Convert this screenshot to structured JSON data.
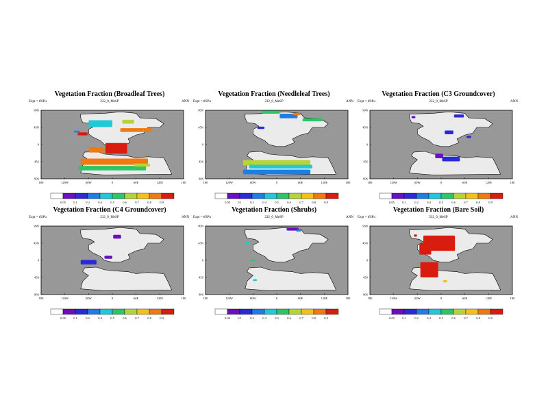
{
  "colors": {
    "ocean": "#989898",
    "land": "#ebebeb",
    "coast": "#000000",
    "colorbar": [
      "#6a10c0",
      "#2a2ad6",
      "#1e7ee6",
      "#20c8d8",
      "#2ec46a",
      "#b6d43a",
      "#f2c21a",
      "#f07a10",
      "#d81c10"
    ]
  },
  "chart_data": [
    {
      "type": "heatmap",
      "title": "Vegetation Fraction (Broadleaf Trees)",
      "expt": "Expt = tfSPu",
      "run": "232_0_MeSP",
      "season": "ANN",
      "x_ticks": [
        "180",
        "120W",
        "60W",
        "0",
        "60E",
        "120E",
        "180"
      ],
      "y_ticks": [
        "90N",
        "45N",
        "0",
        "45S",
        "90S"
      ],
      "xlim": [
        -180,
        180
      ],
      "ylim": [
        -90,
        90
      ],
      "colorbar_labels": [
        "0.05",
        "0.1",
        "0.2",
        "0.4",
        "0.5",
        "0.6",
        "0.7",
        "0.8",
        "0.9"
      ],
      "regions": [
        {
          "lon": -90,
          "lat": 34,
          "lon_span": 15,
          "lat_span": 5,
          "level": 2
        },
        {
          "lon": -75,
          "lat": 28,
          "lon_span": 25,
          "lat_span": 8,
          "level": 8
        },
        {
          "lon": 60,
          "lat": 38,
          "lon_span": 80,
          "lat_span": 10,
          "level": 7
        },
        {
          "lon": -30,
          "lat": 55,
          "lon_span": 60,
          "lat_span": 18,
          "level": 3
        },
        {
          "lon": 40,
          "lat": 60,
          "lon_span": 30,
          "lat_span": 10,
          "level": 5
        },
        {
          "lon": 10,
          "lat": -10,
          "lon_span": 55,
          "lat_span": 28,
          "level": 8
        },
        {
          "lon": -40,
          "lat": -14,
          "lon_span": 40,
          "lat_span": 14,
          "level": 7
        },
        {
          "lon": 5,
          "lat": -45,
          "lon_span": 170,
          "lat_span": 16,
          "level": 7
        },
        {
          "lon": 0,
          "lat": -62,
          "lon_span": 170,
          "lat_span": 12,
          "level": 4
        },
        {
          "lon": 75,
          "lat": -54,
          "lon_span": 40,
          "lat_span": 8,
          "level": 5
        }
      ]
    },
    {
      "type": "heatmap",
      "title": "Vegetation Fraction (Needleleaf Trees)",
      "expt": "Expt = tfSPu",
      "run": "232_0_MeSP",
      "season": "ANN",
      "x_ticks": [
        "180",
        "120W",
        "60W",
        "0",
        "60E",
        "120E",
        "180"
      ],
      "y_ticks": [
        "90N",
        "45N",
        "0",
        "45S",
        "90S"
      ],
      "xlim": [
        -180,
        180
      ],
      "ylim": [
        -90,
        90
      ],
      "colorbar_labels": [
        "0.05",
        "0.1",
        "0.2",
        "0.4",
        "0.5",
        "0.6",
        "0.7",
        "0.8",
        "0.9"
      ],
      "regions": [
        {
          "lon": -15,
          "lat": 85,
          "lon_span": 45,
          "lat_span": 8,
          "level": 4
        },
        {
          "lon": 30,
          "lat": 75,
          "lon_span": 45,
          "lat_span": 12,
          "level": 2
        },
        {
          "lon": 50,
          "lat": 80,
          "lon_span": 20,
          "lat_span": 6,
          "level": 7
        },
        {
          "lon": 90,
          "lat": 65,
          "lon_span": 50,
          "lat_span": 8,
          "level": 4
        },
        {
          "lon": -40,
          "lat": 44,
          "lon_span": 18,
          "lat_span": 6,
          "level": 1
        },
        {
          "lon": 0,
          "lat": -48,
          "lon_span": 170,
          "lat_span": 14,
          "level": 5
        },
        {
          "lon": 10,
          "lat": -58,
          "lon_span": 160,
          "lat_span": 10,
          "level": 3
        },
        {
          "lon": 0,
          "lat": -72,
          "lon_span": 170,
          "lat_span": 12,
          "level": 2
        }
      ]
    },
    {
      "type": "heatmap",
      "title": "Vegetation Fraction (C3 Groundcover)",
      "expt": "Expt = tfSPu",
      "run": "232_0_MeSP",
      "season": "ANN",
      "x_ticks": [
        "180",
        "120W",
        "60W",
        "0",
        "60E",
        "120E",
        "180"
      ],
      "y_ticks": [
        "90N",
        "45N",
        "0",
        "45S",
        "90S"
      ],
      "xlim": [
        -180,
        180
      ],
      "ylim": [
        -90,
        90
      ],
      "colorbar_labels": [
        "0.05",
        "0.1",
        "0.2",
        "0.4",
        "0.5",
        "0.6",
        "0.7",
        "0.8",
        "0.9"
      ],
      "regions": [
        {
          "lon": 45,
          "lat": 75,
          "lon_span": 25,
          "lat_span": 8,
          "level": 1
        },
        {
          "lon": 20,
          "lat": 32,
          "lon_span": 22,
          "lat_span": 10,
          "level": 1
        },
        {
          "lon": 70,
          "lat": 20,
          "lon_span": 12,
          "lat_span": 6,
          "level": 1
        },
        {
          "lon": -5,
          "lat": -30,
          "lon_span": 20,
          "lat_span": 12,
          "level": 0
        },
        {
          "lon": 25,
          "lat": -38,
          "lon_span": 45,
          "lat_span": 12,
          "level": 1
        },
        {
          "lon": -70,
          "lat": 72,
          "lon_span": 10,
          "lat_span": 6,
          "level": 0
        }
      ]
    },
    {
      "type": "heatmap",
      "title": "Vegetation Fraction (C4 Groundcover)",
      "expt": "Expt = tfSPu",
      "run": "232_0_MeSP",
      "season": "ANN",
      "x_ticks": [
        "180",
        "120W",
        "60W",
        "0",
        "60E",
        "120E",
        "180"
      ],
      "y_ticks": [
        "90N",
        "45N",
        "0",
        "45S",
        "90S"
      ],
      "xlim": [
        -180,
        180
      ],
      "ylim": [
        -90,
        90
      ],
      "colorbar_labels": [
        "0.05",
        "0.1",
        "0.2",
        "0.4",
        "0.5",
        "0.6",
        "0.7",
        "0.8",
        "0.9"
      ],
      "regions": [
        {
          "lon": 12,
          "lat": 62,
          "lon_span": 20,
          "lat_span": 10,
          "level": 0
        },
        {
          "lon": -60,
          "lat": -5,
          "lon_span": 40,
          "lat_span": 12,
          "level": 1
        },
        {
          "lon": -10,
          "lat": 8,
          "lon_span": 20,
          "lat_span": 8,
          "level": 0
        }
      ]
    },
    {
      "type": "heatmap",
      "title": "Vegetation Fraction (Shrubs)",
      "expt": "Expt = tfSPu",
      "run": "232_0_MeSP",
      "season": "ANN",
      "x_ticks": [
        "180",
        "120W",
        "60W",
        "0",
        "60E",
        "120E",
        "180"
      ],
      "y_ticks": [
        "90N",
        "45N",
        "0",
        "45S",
        "90S"
      ],
      "xlim": [
        -180,
        180
      ],
      "ylim": [
        -90,
        90
      ],
      "colorbar_labels": [
        "0.05",
        "0.1",
        "0.2",
        "0.4",
        "0.5",
        "0.6",
        "0.7",
        "0.8",
        "0.9"
      ],
      "regions": [
        {
          "lon": 40,
          "lat": 82,
          "lon_span": 30,
          "lat_span": 8,
          "level": 0
        },
        {
          "lon": 55,
          "lat": 78,
          "lon_span": 12,
          "lat_span": 5,
          "level": 2
        },
        {
          "lon": -75,
          "lat": 45,
          "lon_span": 12,
          "lat_span": 6,
          "level": 3
        },
        {
          "lon": -60,
          "lat": 0,
          "lon_span": 12,
          "lat_span": 5,
          "level": 4
        },
        {
          "lon": -55,
          "lat": -52,
          "lon_span": 10,
          "lat_span": 5,
          "level": 3
        }
      ]
    },
    {
      "type": "heatmap",
      "title": "Vegetation Fraction (Bare Soil)",
      "expt": "Expt = tfSPu",
      "run": "232_0_MeSP",
      "season": "ANN",
      "x_ticks": [
        "180",
        "120W",
        "60W",
        "0",
        "60E",
        "120E",
        "180"
      ],
      "y_ticks": [
        "90N",
        "45N",
        "0",
        "45S",
        "90S"
      ],
      "xlim": [
        -180,
        180
      ],
      "ylim": [
        -90,
        90
      ],
      "colorbar_labels": [
        "0.05",
        "0.1",
        "0.2",
        "0.4",
        "0.5",
        "0.6",
        "0.7",
        "0.8",
        "0.9"
      ],
      "regions": [
        {
          "lon": -5,
          "lat": 45,
          "lon_span": 80,
          "lat_span": 40,
          "level": 8
        },
        {
          "lon": -40,
          "lat": 30,
          "lon_span": 30,
          "lat_span": 30,
          "level": 8
        },
        {
          "lon": -30,
          "lat": -25,
          "lon_span": 45,
          "lat_span": 40,
          "level": 8
        },
        {
          "lon": 10,
          "lat": -55,
          "lon_span": 10,
          "lat_span": 6,
          "level": 6
        },
        {
          "lon": -65,
          "lat": 65,
          "lon_span": 8,
          "lat_span": 6,
          "level": 8
        }
      ]
    }
  ]
}
